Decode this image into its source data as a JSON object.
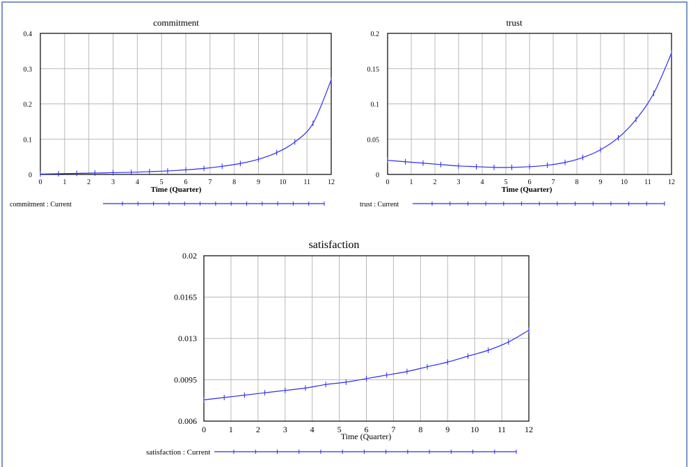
{
  "colors": {
    "series": "#2b2bf0",
    "grid": "#b8b8b8",
    "frame": "#7a96c8"
  },
  "chart_data": [
    {
      "type": "line",
      "title": "commitment",
      "xlabel": "Time (Quarter)",
      "ylabel": "",
      "xlim": [
        0,
        12
      ],
      "ylim": [
        0,
        0.4
      ],
      "xticks": [
        0,
        1,
        2,
        3,
        4,
        5,
        6,
        7,
        8,
        9,
        10,
        11,
        12
      ],
      "yticks": [
        0,
        0.1,
        0.2,
        0.3,
        0.4
      ],
      "ytick_labels": [
        "0",
        "0.1",
        "0.2",
        "0.3",
        "0.4"
      ],
      "grid": true,
      "legend": "commitment : Current",
      "series": [
        {
          "name": "commitment : Current",
          "x": [
            0,
            0.75,
            1.5,
            2.25,
            3,
            3.75,
            4.5,
            5.25,
            6,
            6.75,
            7.5,
            8.25,
            9,
            9.75,
            10.5,
            11.25,
            12
          ],
          "values": [
            0.001,
            0.002,
            0.003,
            0.004,
            0.005,
            0.006,
            0.008,
            0.01,
            0.013,
            0.017,
            0.023,
            0.031,
            0.043,
            0.062,
            0.092,
            0.145,
            0.268
          ]
        }
      ]
    },
    {
      "type": "line",
      "title": "trust",
      "xlabel": "Time (Quarter)",
      "ylabel": "",
      "xlim": [
        0,
        12
      ],
      "ylim": [
        0,
        0.2
      ],
      "xticks": [
        0,
        1,
        2,
        3,
        4,
        5,
        6,
        7,
        8,
        9,
        10,
        11,
        12
      ],
      "yticks": [
        0,
        0.05,
        0.1,
        0.15,
        0.2
      ],
      "ytick_labels": [
        "0",
        "0.05",
        "0.1",
        "0.15",
        "0.2"
      ],
      "grid": true,
      "legend": "trust : Current",
      "series": [
        {
          "name": "trust : Current",
          "x": [
            0,
            0.75,
            1.5,
            2.25,
            3,
            3.75,
            4.5,
            5.25,
            6,
            6.75,
            7.5,
            8.25,
            9,
            9.75,
            10.5,
            11.25,
            12
          ],
          "values": [
            0.02,
            0.018,
            0.016,
            0.014,
            0.012,
            0.011,
            0.01,
            0.01,
            0.011,
            0.013,
            0.017,
            0.024,
            0.035,
            0.052,
            0.078,
            0.115,
            0.172
          ]
        }
      ]
    },
    {
      "type": "line",
      "title": "satisfaction",
      "xlabel": "Time (Quarter)",
      "ylabel": "",
      "xlim": [
        0,
        12
      ],
      "ylim": [
        0.006,
        0.02
      ],
      "xticks": [
        0,
        1,
        2,
        3,
        4,
        5,
        6,
        7,
        8,
        9,
        10,
        11,
        12
      ],
      "yticks": [
        0.006,
        0.0095,
        0.013,
        0.0165,
        0.02
      ],
      "ytick_labels": [
        "0.006",
        "0.0095",
        "0.013",
        "0.0165",
        "0.02"
      ],
      "grid": true,
      "legend": "satisfaction : Current",
      "series": [
        {
          "name": "satisfaction : Current",
          "x": [
            0,
            0.75,
            1.5,
            2.25,
            3,
            3.75,
            4.5,
            5.25,
            6,
            6.75,
            7.5,
            8.25,
            9,
            9.75,
            10.5,
            11.25,
            12
          ],
          "values": [
            0.0078,
            0.008,
            0.0082,
            0.0084,
            0.0086,
            0.0088,
            0.0091,
            0.0093,
            0.0096,
            0.0099,
            0.0102,
            0.0106,
            0.011,
            0.0115,
            0.012,
            0.0127,
            0.0137
          ]
        }
      ]
    }
  ]
}
